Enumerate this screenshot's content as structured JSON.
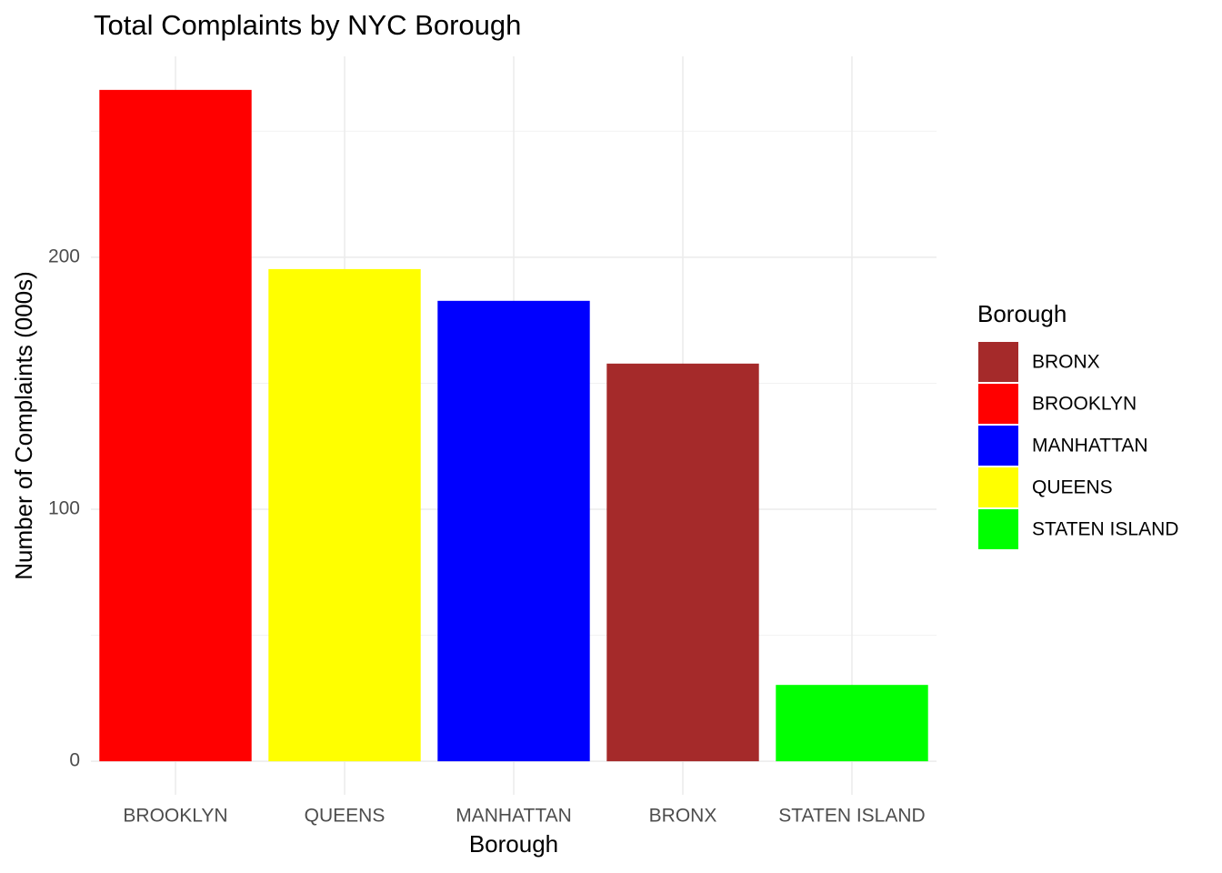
{
  "chart_data": {
    "type": "bar",
    "title": "Total Complaints by NYC Borough",
    "x_label": "Borough",
    "y_label": "Number of Complaints (000s)",
    "categories": [
      "BROOKLYN",
      "QUEENS",
      "MANHATTAN",
      "BRONX",
      "STATEN ISLAND"
    ],
    "values": [
      266.4,
      195.3,
      182.7,
      157.8,
      30.3
    ],
    "colors": [
      "#ff0000",
      "#ffff00",
      "#0000ff",
      "#a52a2a",
      "#00ff00"
    ],
    "ylim": [
      -13.3,
      279.7
    ],
    "yticks": [
      0,
      100,
      200
    ],
    "minor_yticks": [
      50,
      150,
      250
    ],
    "grid": true,
    "legend_title": "Borough",
    "legend": [
      {
        "name": "BRONX",
        "color": "#a52a2a"
      },
      {
        "name": "BROOKLYN",
        "color": "#ff0000"
      },
      {
        "name": "MANHATTAN",
        "color": "#0000ff"
      },
      {
        "name": "QUEENS",
        "color": "#ffff00"
      },
      {
        "name": "STATEN ISLAND",
        "color": "#00ff00"
      }
    ],
    "legend_position": "right"
  }
}
